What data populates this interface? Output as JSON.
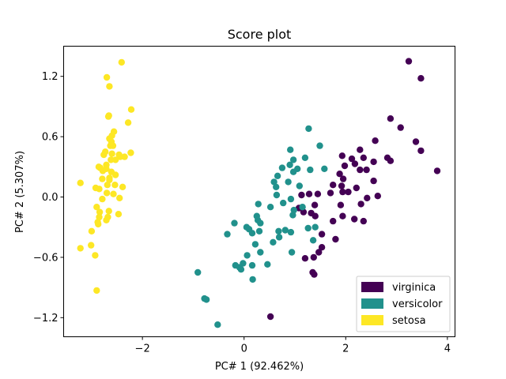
{
  "chart_data": {
    "type": "scatter",
    "title": "Score plot",
    "xlabel": "PC# 1 (92.462%)",
    "ylabel": "PC# 2 (5.307%)",
    "xlim": [
      -3.55,
      4.15
    ],
    "ylim": [
      -1.39,
      1.5
    ],
    "xticks": [
      -2,
      0,
      2,
      4
    ],
    "xtick_labels": [
      "−2",
      "0",
      "2",
      "4"
    ],
    "yticks": [
      -1.2,
      -0.6,
      0.0,
      0.6,
      1.2
    ],
    "ytick_labels": [
      "−1.2",
      "−0.6",
      "0.0",
      "0.6",
      "1.2"
    ],
    "grid": false,
    "legend_position": "lower-right",
    "series": [
      {
        "name": "virginica",
        "color": "#440154",
        "points": [
          [
            3.24,
            1.35
          ],
          [
            3.48,
            1.18
          ],
          [
            2.88,
            0.78
          ],
          [
            3.08,
            0.69
          ],
          [
            3.38,
            0.55
          ],
          [
            3.48,
            0.46
          ],
          [
            2.58,
            0.56
          ],
          [
            2.28,
            0.47
          ],
          [
            1.93,
            0.41
          ],
          [
            2.12,
            0.38
          ],
          [
            2.35,
            0.39
          ],
          [
            2.82,
            0.39
          ],
          [
            2.88,
            0.36
          ],
          [
            2.55,
            0.35
          ],
          [
            2.18,
            0.33
          ],
          [
            1.98,
            0.31
          ],
          [
            2.28,
            0.27
          ],
          [
            2.41,
            0.27
          ],
          [
            3.8,
            0.26
          ],
          [
            1.88,
            0.23
          ],
          [
            1.95,
            0.18
          ],
          [
            2.55,
            0.16
          ],
          [
            1.75,
            0.12
          ],
          [
            1.92,
            0.11
          ],
          [
            2.21,
            0.09
          ],
          [
            2.05,
            0.05
          ],
          [
            1.94,
            0.05
          ],
          [
            1.7,
            0.04
          ],
          [
            1.45,
            0.03
          ],
          [
            1.28,
            0.03
          ],
          [
            1.13,
            0.02
          ],
          [
            2.63,
            0.01
          ],
          [
            2.42,
            -0.01
          ],
          [
            2.3,
            -0.07
          ],
          [
            1.9,
            -0.08
          ],
          [
            1.39,
            -0.08
          ],
          [
            1.08,
            -0.11
          ],
          [
            1.17,
            -0.15
          ],
          [
            1.32,
            -0.16
          ],
          [
            1.4,
            -0.19
          ],
          [
            1.94,
            -0.19
          ],
          [
            2.17,
            -0.22
          ],
          [
            1.75,
            -0.24
          ],
          [
            2.35,
            -0.24
          ],
          [
            1.53,
            -0.37
          ],
          [
            1.8,
            -0.42
          ],
          [
            1.53,
            -0.5
          ],
          [
            1.47,
            -0.55
          ],
          [
            1.37,
            -0.6
          ],
          [
            1.2,
            -0.61
          ],
          [
            1.35,
            -0.75
          ],
          [
            1.38,
            -0.77
          ],
          [
            0.52,
            -1.19
          ]
        ]
      },
      {
        "name": "versicolor",
        "color": "#21918c",
        "points": [
          [
            1.27,
            0.68
          ],
          [
            1.49,
            0.51
          ],
          [
            0.91,
            0.47
          ],
          [
            1.2,
            0.39
          ],
          [
            0.97,
            0.37
          ],
          [
            0.9,
            0.32
          ],
          [
            1.58,
            0.28
          ],
          [
            0.75,
            0.29
          ],
          [
            1.3,
            0.27
          ],
          [
            1.05,
            0.28
          ],
          [
            0.97,
            0.25
          ],
          [
            0.66,
            0.21
          ],
          [
            0.59,
            0.15
          ],
          [
            0.87,
            0.15
          ],
          [
            0.63,
            0.1
          ],
          [
            1.09,
            0.11
          ],
          [
            0.64,
            0.02
          ],
          [
            0.92,
            -0.02
          ],
          [
            0.77,
            -0.06
          ],
          [
            0.98,
            -0.13
          ],
          [
            1.15,
            -0.1
          ],
          [
            0.28,
            -0.07
          ],
          [
            0.52,
            -0.1
          ],
          [
            0.96,
            -0.18
          ],
          [
            0.25,
            -0.19
          ],
          [
            0.27,
            -0.23
          ],
          [
            0.32,
            -0.26
          ],
          [
            -0.19,
            -0.26
          ],
          [
            0.05,
            -0.3
          ],
          [
            0.1,
            -0.32
          ],
          [
            0.3,
            -0.34
          ],
          [
            0.16,
            -0.36
          ],
          [
            0.68,
            -0.34
          ],
          [
            0.69,
            -0.4
          ],
          [
            0.92,
            -0.35
          ],
          [
            0.81,
            -0.33
          ],
          [
            1.26,
            -0.31
          ],
          [
            1.4,
            -0.3
          ],
          [
            0.57,
            -0.45
          ],
          [
            -0.33,
            -0.37
          ],
          [
            1.36,
            -0.43
          ],
          [
            0.22,
            -0.47
          ],
          [
            0.32,
            -0.55
          ],
          [
            0.06,
            -0.58
          ],
          [
            0.94,
            -0.55
          ],
          [
            -0.02,
            -0.66
          ],
          [
            -0.17,
            -0.68
          ],
          [
            0.16,
            -0.68
          ],
          [
            0.46,
            -0.67
          ],
          [
            -0.06,
            -0.72
          ],
          [
            -0.09,
            -0.7
          ],
          [
            -0.91,
            -0.75
          ],
          [
            0.17,
            -0.82
          ],
          [
            -0.78,
            -1.01
          ],
          [
            -0.74,
            -1.02
          ],
          [
            -0.52,
            -1.27
          ]
        ]
      },
      {
        "name": "setosa",
        "color": "#fde725",
        "points": [
          [
            -2.41,
            1.34
          ],
          [
            -2.7,
            1.19
          ],
          [
            -2.65,
            1.1
          ],
          [
            -2.22,
            0.87
          ],
          [
            -2.66,
            0.81
          ],
          [
            -2.67,
            0.8
          ],
          [
            -2.28,
            0.74
          ],
          [
            -2.56,
            0.65
          ],
          [
            -2.6,
            0.61
          ],
          [
            -2.65,
            0.58
          ],
          [
            -2.61,
            0.55
          ],
          [
            -2.63,
            0.51
          ],
          [
            -2.58,
            0.51
          ],
          [
            -2.73,
            0.45
          ],
          [
            -2.76,
            0.42
          ],
          [
            -2.23,
            0.44
          ],
          [
            -2.6,
            0.43
          ],
          [
            -2.46,
            0.42
          ],
          [
            -2.35,
            0.4
          ],
          [
            -2.44,
            0.4
          ],
          [
            -2.62,
            0.37
          ],
          [
            -2.53,
            0.37
          ],
          [
            -2.71,
            0.32
          ],
          [
            -2.86,
            0.3
          ],
          [
            -2.83,
            0.29
          ],
          [
            -2.71,
            0.28
          ],
          [
            -2.78,
            0.26
          ],
          [
            -2.61,
            0.25
          ],
          [
            -2.53,
            0.22
          ],
          [
            -2.65,
            0.19
          ],
          [
            -2.79,
            0.18
          ],
          [
            -2.65,
            0.17
          ],
          [
            -3.22,
            0.14
          ],
          [
            -2.69,
            0.12
          ],
          [
            -2.54,
            0.12
          ],
          [
            -2.39,
            0.1
          ],
          [
            -2.92,
            0.09
          ],
          [
            -2.85,
            0.08
          ],
          [
            -2.7,
            0.04
          ],
          [
            -2.57,
            0.03
          ],
          [
            -2.45,
            -0.01
          ],
          [
            -2.79,
            -0.02
          ],
          [
            -2.9,
            -0.1
          ],
          [
            -2.66,
            -0.14
          ],
          [
            -2.84,
            -0.15
          ],
          [
            -2.47,
            -0.17
          ],
          [
            -2.85,
            -0.2
          ],
          [
            -2.68,
            -0.2
          ],
          [
            -2.71,
            -0.23
          ],
          [
            -2.88,
            -0.25
          ],
          [
            -3.0,
            -0.34
          ],
          [
            -2.87,
            -0.27
          ],
          [
            -3.22,
            -0.51
          ],
          [
            -3.01,
            -0.48
          ],
          [
            -2.93,
            -0.58
          ],
          [
            -2.9,
            -0.93
          ]
        ]
      }
    ]
  }
}
